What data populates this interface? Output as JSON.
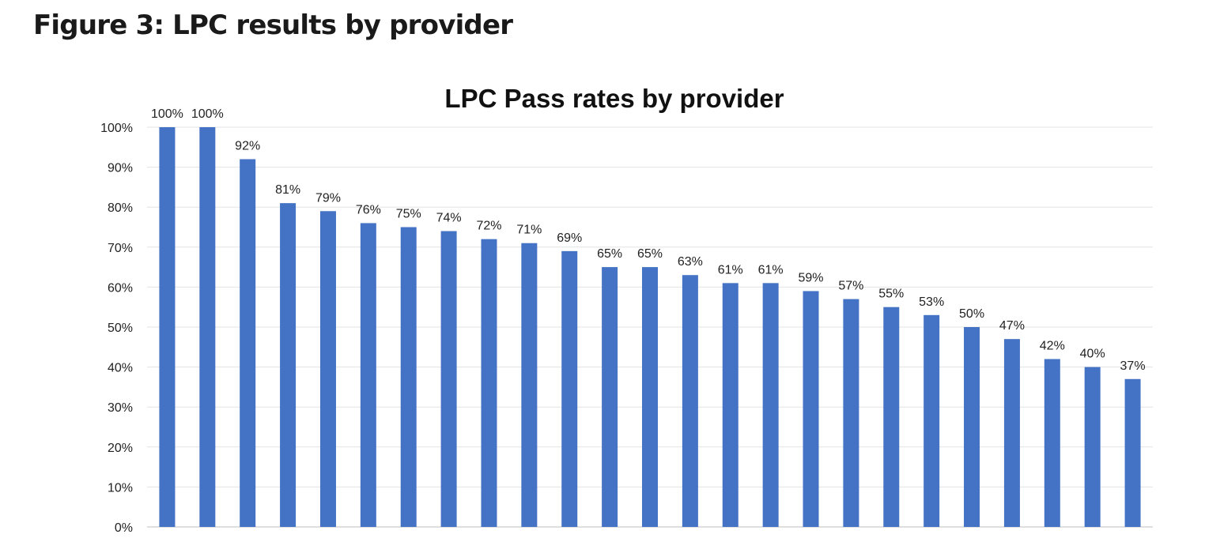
{
  "figure": {
    "heading": "Figure 3: LPC results by provider"
  },
  "chart_data": {
    "type": "bar",
    "title": "LPC Pass rates by provider",
    "xlabel": "",
    "ylabel": "",
    "ylim": [
      0,
      100
    ],
    "y_ticks": [
      "0%",
      "10%",
      "20%",
      "30%",
      "40%",
      "50%",
      "60%",
      "70%",
      "80%",
      "90%",
      "100%"
    ],
    "y_tick_values": [
      0,
      10,
      20,
      30,
      40,
      50,
      60,
      70,
      80,
      90,
      100
    ],
    "grid": true,
    "legend": "none",
    "bar_color": "#4472c4",
    "values": [
      100,
      100,
      92,
      81,
      79,
      76,
      75,
      74,
      72,
      71,
      69,
      65,
      65,
      63,
      61,
      61,
      59,
      57,
      55,
      53,
      50,
      47,
      42,
      40,
      37
    ],
    "data_labels": [
      "100%",
      "100%",
      "92%",
      "81%",
      "79%",
      "76%",
      "75%",
      "74%",
      "72%",
      "71%",
      "69%",
      "65%",
      "65%",
      "63%",
      "61%",
      "61%",
      "59%",
      "57%",
      "55%",
      "53%",
      "50%",
      "47%",
      "42%",
      "40%",
      "37%"
    ]
  }
}
